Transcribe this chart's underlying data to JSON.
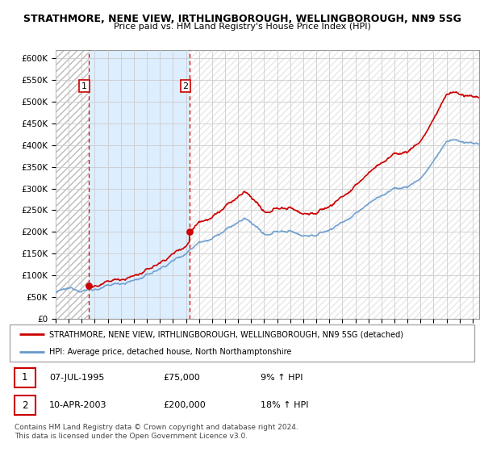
{
  "title_line1": "STRATHMORE, NENE VIEW, IRTHLINGBOROUGH, WELLINGBOROUGH, NN9 5SG",
  "title_line2": "Price paid vs. HM Land Registry's House Price Index (HPI)",
  "ylim": [
    0,
    620000
  ],
  "yticks": [
    0,
    50000,
    100000,
    150000,
    200000,
    250000,
    300000,
    350000,
    400000,
    450000,
    500000,
    550000,
    600000
  ],
  "ytick_labels": [
    "£0",
    "£50K",
    "£100K",
    "£150K",
    "£200K",
    "£250K",
    "£300K",
    "£350K",
    "£400K",
    "£450K",
    "£500K",
    "£550K",
    "£600K"
  ],
  "sale1_date": 1995.51,
  "sale1_price": 75000,
  "sale2_date": 2003.27,
  "sale2_price": 200000,
  "sale_color": "#cc0000",
  "hpi_color": "#6699cc",
  "shade_color": "#ddeeff",
  "legend_line1": "STRATHMORE, NENE VIEW, IRTHLINGBOROUGH, WELLINGBOROUGH, NN9 5SG (detached)",
  "legend_line2": "HPI: Average price, detached house, North Northamptonshire",
  "annotation1_date": "07-JUL-1995",
  "annotation1_price": "£75,000",
  "annotation1_hpi": "9% ↑ HPI",
  "annotation2_date": "10-APR-2003",
  "annotation2_price": "£200,000",
  "annotation2_hpi": "18% ↑ HPI",
  "footer": "Contains HM Land Registry data © Crown copyright and database right 2024.\nThis data is licensed under the Open Government Licence v3.0.",
  "xmin": 1993,
  "xmax": 2025.5
}
